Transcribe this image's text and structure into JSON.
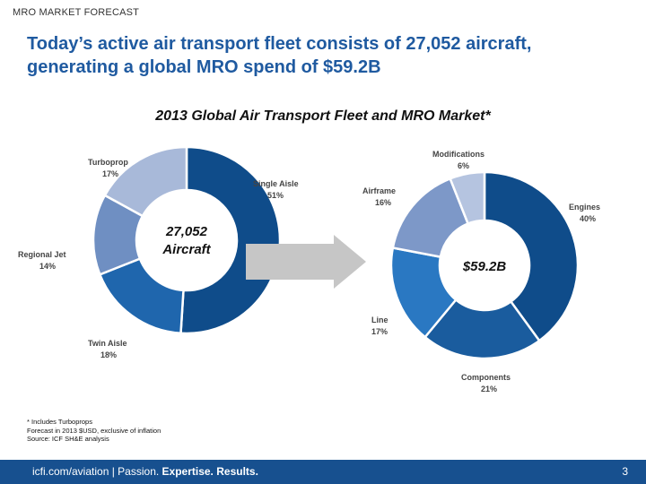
{
  "header": {
    "kicker": "MRO MARKET FORECAST",
    "title_line1": "Today’s active air transport fleet consists of 27,052 aircraft,",
    "title_line2": "generating a global MRO spend of $59.2B"
  },
  "chart_data": [
    {
      "type": "pie",
      "title": "2013 Global Air Transport Fleet and MRO Market*",
      "center_label_line1": "27,052",
      "center_label_line2": "Aircraft",
      "categories": [
        "Single Aisle",
        "Twin Aisle",
        "Regional Jet",
        "Turboprop"
      ],
      "values": [
        51,
        18,
        14,
        17
      ],
      "unit": "%",
      "value_labels": [
        "51%",
        "18%",
        "14%",
        "17%"
      ],
      "colors": [
        "#0f4c8a",
        "#1f66ad",
        "#6f8fc2",
        "#a8b9d9"
      ]
    },
    {
      "type": "pie",
      "center_label_line1": "$59.2B",
      "categories": [
        "Engines",
        "Components",
        "Line",
        "Airframe",
        "Modifications"
      ],
      "values": [
        40,
        21,
        17,
        16,
        6
      ],
      "unit": "%",
      "value_labels": [
        "40%",
        "21%",
        "17%",
        "16%",
        "6%"
      ],
      "colors": [
        "#0f4c8a",
        "#1a5c9e",
        "#2a78c2",
        "#7d98c8",
        "#b5c4e0"
      ]
    }
  ],
  "footnotes": {
    "line1": "* Includes Turboprops",
    "line2": "Forecast in 2013 $USD, exclusive of inflation",
    "line3": "Source: ICF SH&E analysis"
  },
  "footer": {
    "site": "icfi.com/aviation",
    "separator": " | ",
    "tagline_prefix": "Passion. ",
    "tagline_bold": "Expertise. Results.",
    "page_number": "3"
  }
}
